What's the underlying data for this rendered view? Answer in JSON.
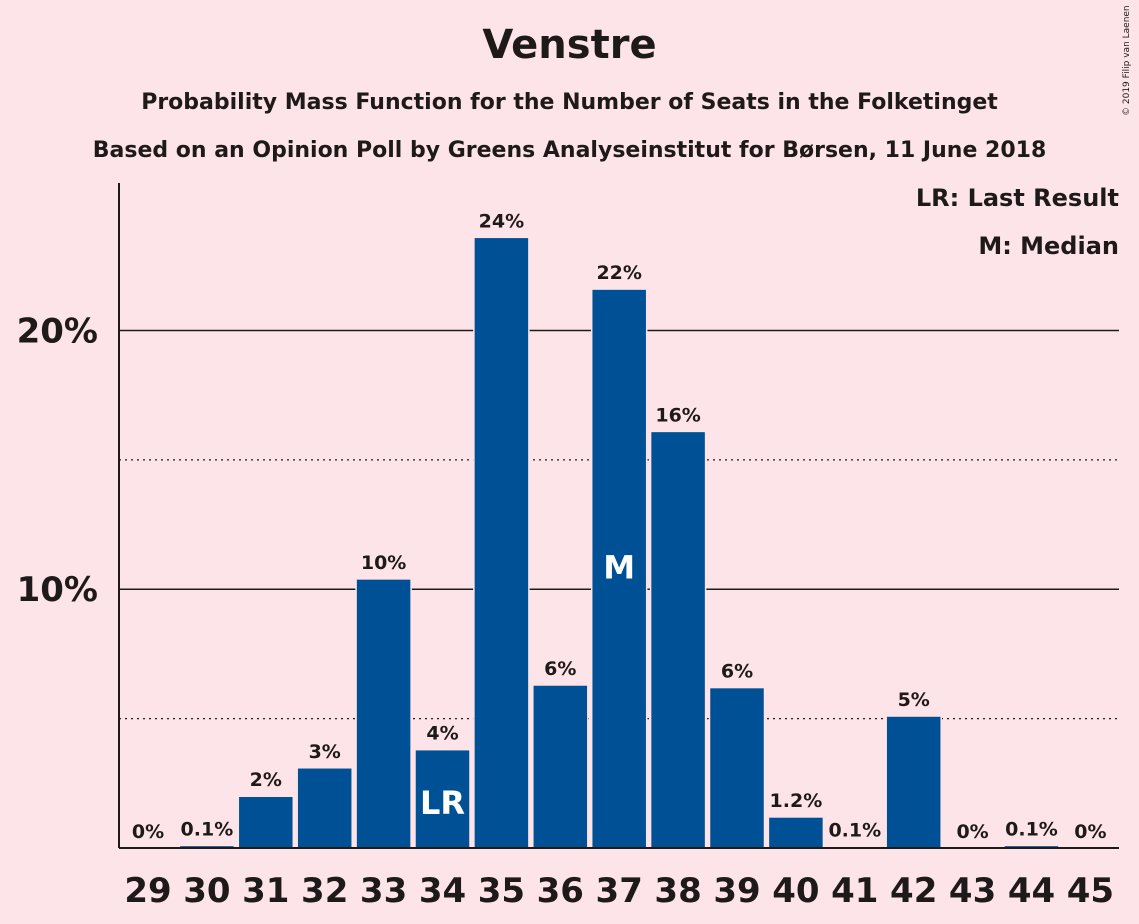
{
  "title": "Venstre",
  "subtitle": "Probability Mass Function for the Number of Seats in the Folketinget",
  "subtitle2": "Based on an Opinion Poll by Greens Analyseinstitut for Børsen, 11 June 2018",
  "legend": {
    "lr": "LR: Last Result",
    "m": "M: Median"
  },
  "copyright": "© 2019 Filip van Laenen",
  "colors": {
    "background": "#fde4e8",
    "bar": "#005096",
    "text": "#1f1a1a"
  },
  "chart_data": {
    "type": "bar",
    "categories": [
      "29",
      "30",
      "31",
      "32",
      "33",
      "34",
      "35",
      "36",
      "37",
      "38",
      "39",
      "40",
      "41",
      "42",
      "43",
      "44",
      "45"
    ],
    "values": [
      0,
      0.1,
      2.0,
      3.1,
      10.4,
      3.8,
      23.6,
      6.3,
      21.6,
      16.1,
      6.2,
      1.2,
      0.05,
      5.1,
      0,
      0.1,
      0
    ],
    "data_labels": [
      "0%",
      "0.1%",
      "2%",
      "3%",
      "10%",
      "4%",
      "24%",
      "6%",
      "22%",
      "16%",
      "6%",
      "1.2%",
      "0.1%",
      "5%",
      "0%",
      "0.1%",
      "0%"
    ],
    "y_ticks": [
      {
        "value": 10,
        "label": "10%"
      },
      {
        "value": 20,
        "label": "20%"
      }
    ],
    "minor_gridlines": [
      5,
      15
    ],
    "ylim": [
      0,
      25.7
    ],
    "markers": [
      {
        "category": "34",
        "label": "LR"
      },
      {
        "category": "37",
        "label": "M"
      }
    ],
    "xlabel": "",
    "ylabel": "",
    "legend_position": "top-right"
  }
}
